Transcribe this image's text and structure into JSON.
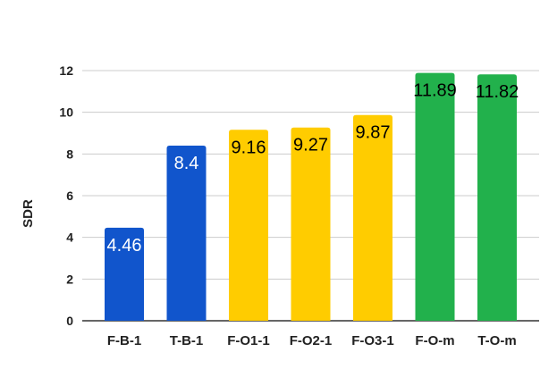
{
  "chart_data": {
    "type": "bar",
    "title": "",
    "xlabel": "",
    "ylabel": "SDR",
    "ylim": [
      0,
      12
    ],
    "yticks": [
      0,
      2,
      4,
      6,
      8,
      10,
      12
    ],
    "grid": true,
    "legend": "none",
    "categories": [
      "F-B-1",
      "T-B-1",
      "F-O1-1",
      "F-O2-1",
      "F-O3-1",
      "F-O-m",
      "T-O-m"
    ],
    "values": [
      4.46,
      8.4,
      9.16,
      9.27,
      9.87,
      11.89,
      11.82
    ],
    "data_labels": [
      "4.46",
      "8.4",
      "9.16",
      "9.27",
      "9.87",
      "11.89",
      "11.82"
    ],
    "bar_colors": [
      "#1155cc",
      "#1155cc",
      "#ffcc00",
      "#ffcc00",
      "#ffcc00",
      "#22b14c",
      "#22b14c"
    ],
    "label_colors": [
      "#ffffff",
      "#ffffff",
      "#000000",
      "#000000",
      "#000000",
      "#000000",
      "#000000"
    ]
  }
}
